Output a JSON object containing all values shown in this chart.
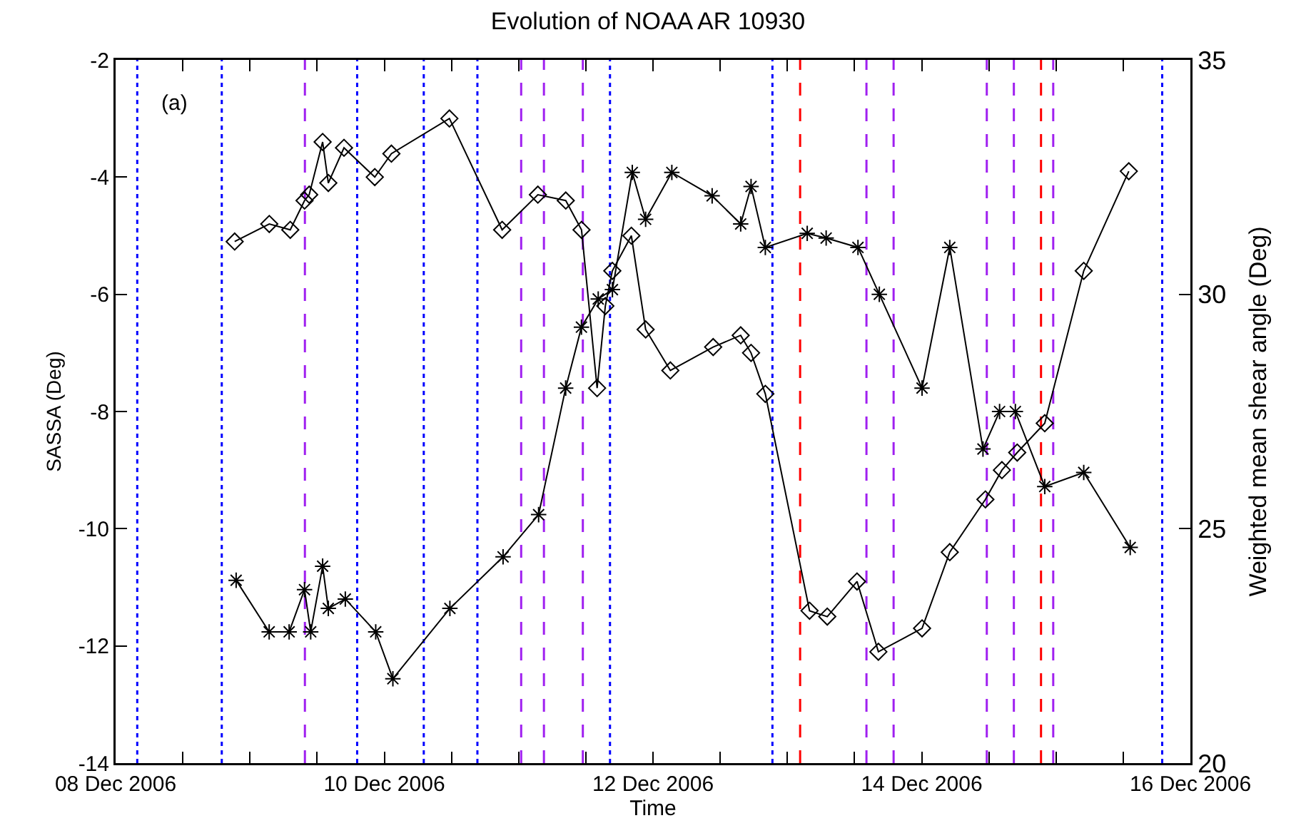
{
  "chart_data": {
    "type": "line",
    "title": "Evolution of NOAA AR 10930",
    "xlabel": "Time",
    "ylabel": "SASSA (Deg)",
    "y2label": "Weighted mean shear angle (Deg)",
    "annotations": [
      "(a)"
    ],
    "xlim": [
      "2006-12-08",
      "2006-12-16"
    ],
    "xticks": [
      {
        "value": "2006-12-08",
        "label": "08 Dec 2006"
      },
      {
        "value": "2006-12-08T12:00",
        "label": null
      },
      {
        "value": "2006-12-09",
        "label": null
      },
      {
        "value": "2006-12-09T12:00",
        "label": null
      },
      {
        "value": "2006-12-10",
        "label": "10 Dec 2006"
      },
      {
        "value": "2006-12-10T12:00",
        "label": null
      },
      {
        "value": "2006-12-11",
        "label": null
      },
      {
        "value": "2006-12-11T12:00",
        "label": null
      },
      {
        "value": "2006-12-12",
        "label": "12 Dec 2006"
      },
      {
        "value": "2006-12-12T12:00",
        "label": null
      },
      {
        "value": "2006-12-13",
        "label": null
      },
      {
        "value": "2006-12-13T12:00",
        "label": null
      },
      {
        "value": "2006-12-14",
        "label": "14 Dec 2006"
      },
      {
        "value": "2006-12-14T12:00",
        "label": null
      },
      {
        "value": "2006-12-15",
        "label": null
      },
      {
        "value": "2006-12-15T12:00",
        "label": null
      },
      {
        "value": "2006-12-16",
        "label": "16 Dec 2006"
      }
    ],
    "ylim": [
      -14,
      -2
    ],
    "yticks": [
      -14,
      -12,
      -10,
      -8,
      -6,
      -4,
      -2
    ],
    "y2lim": [
      20,
      35
    ],
    "y2ticks": [
      20,
      25,
      30,
      35
    ],
    "grid": false,
    "series": [
      {
        "color": "#000000",
        "marker": "diamond",
        "x": [
          "2006-12-08T21:16",
          "2006-12-09T03:27",
          "2006-12-09T07:12",
          "2006-12-09T09:45",
          "2006-12-09T10:35",
          "2006-12-09T12:59",
          "2006-12-09T14:00",
          "2006-12-09T16:48",
          "2006-12-09T22:18",
          "2006-12-10T01:16",
          "2006-12-10T11:38",
          "2006-12-10T21:03",
          "2006-12-11T03:26",
          "2006-12-11T08:25",
          "2006-12-11T11:14",
          "2006-12-11T14:01",
          "2006-12-11T15:29",
          "2006-12-11T16:44",
          "2006-12-11T20:08",
          "2006-12-11T22:41",
          "2006-12-12T03:06",
          "2006-12-12T10:45",
          "2006-12-12T15:40",
          "2006-12-12T17:31",
          "2006-12-12T20:04",
          "2006-12-13T03:58",
          "2006-12-13T07:08",
          "2006-12-13T12:27",
          "2006-12-13T16:16",
          "2006-12-14T00:04",
          "2006-12-14T05:01",
          "2006-12-14T11:23",
          "2006-12-14T14:20",
          "2006-12-14T17:04",
          "2006-12-14T21:59",
          "2006-12-15T04:57",
          "2006-12-15T13:00"
        ],
        "values": [
          -5.1,
          -4.8,
          -4.9,
          -4.4,
          -4.3,
          -3.4,
          -4.1,
          -3.5,
          -4.0,
          -3.6,
          -3.0,
          -4.9,
          -4.3,
          -4.4,
          -4.9,
          -7.6,
          -6.2,
          -5.6,
          -5.0,
          -6.6,
          -7.3,
          -6.9,
          -6.7,
          -7.0,
          -7.7,
          -11.4,
          -11.5,
          -10.9,
          -12.1,
          -11.7,
          -10.4,
          -9.5,
          -9.0,
          -8.7,
          -8.2,
          -5.6,
          -3.9
        ]
      },
      {
        "color": "#000000",
        "marker": "cross",
        "axis": "y2",
        "x": [
          "2006-12-08T21:32",
          "2006-12-09T03:26",
          "2006-12-09T07:00",
          "2006-12-09T09:45",
          "2006-12-09T10:51",
          "2006-12-09T12:59",
          "2006-12-09T14:00",
          "2006-12-09T17:02",
          "2006-12-09T22:28",
          "2006-12-10T01:32",
          "2006-12-10T11:43",
          "2006-12-10T21:13",
          "2006-12-11T03:34",
          "2006-12-11T08:24",
          "2006-12-11T11:13",
          "2006-12-11T14:13",
          "2006-12-11T16:45",
          "2006-12-11T20:18",
          "2006-12-11T22:41",
          "2006-12-12T03:22",
          "2006-12-12T10:34",
          "2006-12-12T15:40",
          "2006-12-12T17:31",
          "2006-12-12T20:04",
          "2006-12-13T03:33",
          "2006-12-13T06:56",
          "2006-12-13T12:37",
          "2006-12-13T16:26",
          "2006-12-14T00:04",
          "2006-12-14T05:01",
          "2006-12-14T10:57",
          "2006-12-14T13:55",
          "2006-12-14T16:44",
          "2006-12-14T21:59",
          "2006-12-15T04:57",
          "2006-12-15T13:15"
        ],
        "values": [
          23.9,
          22.8,
          22.8,
          23.7,
          22.8,
          24.2,
          23.3,
          23.5,
          22.8,
          21.8,
          23.3,
          24.4,
          25.3,
          28.0,
          29.3,
          29.9,
          30.1,
          32.6,
          31.6,
          32.6,
          32.1,
          31.5,
          32.3,
          31.0,
          31.3,
          31.2,
          31.0,
          30.0,
          28.0,
          31.0,
          26.7,
          27.5,
          27.5,
          25.9,
          26.2,
          24.6
        ]
      }
    ],
    "ref_lines": [
      {
        "axis": "x",
        "value": "2006-12-08T03:52",
        "color": "#0000ff",
        "line_style": "dotted"
      },
      {
        "axis": "x",
        "value": "2006-12-08T18:58",
        "color": "#0000ff",
        "line_style": "dotted"
      },
      {
        "axis": "x",
        "value": "2006-12-09T19:09",
        "color": "#0000ff",
        "line_style": "dotted"
      },
      {
        "axis": "x",
        "value": "2006-12-10T07:03",
        "color": "#0000ff",
        "line_style": "dotted"
      },
      {
        "axis": "x",
        "value": "2006-12-10T16:38",
        "color": "#0000ff",
        "line_style": "dotted"
      },
      {
        "axis": "x",
        "value": "2006-12-11T16:19",
        "color": "#0000ff",
        "line_style": "dotted"
      },
      {
        "axis": "x",
        "value": "2006-12-12T21:20",
        "color": "#0000ff",
        "line_style": "dotted"
      },
      {
        "axis": "x",
        "value": "2006-12-15T18:58",
        "color": "#0000ff",
        "line_style": "dotted"
      },
      {
        "axis": "x",
        "value": "2006-12-09T09:49",
        "color": "#a020f0",
        "line_style": "dashed"
      },
      {
        "axis": "x",
        "value": "2006-12-11T00:27",
        "color": "#a020f0",
        "line_style": "dashed"
      },
      {
        "axis": "x",
        "value": "2006-12-11T04:31",
        "color": "#a020f0",
        "line_style": "dashed"
      },
      {
        "axis": "x",
        "value": "2006-12-11T11:28",
        "color": "#a020f0",
        "line_style": "dashed"
      },
      {
        "axis": "x",
        "value": "2006-12-13T14:08",
        "color": "#a020f0",
        "line_style": "dashed"
      },
      {
        "axis": "x",
        "value": "2006-12-13T18:59",
        "color": "#a020f0",
        "line_style": "dashed"
      },
      {
        "axis": "x",
        "value": "2006-12-14T11:38",
        "color": "#a020f0",
        "line_style": "dashed"
      },
      {
        "axis": "x",
        "value": "2006-12-14T16:28",
        "color": "#a020f0",
        "line_style": "dashed"
      },
      {
        "axis": "x",
        "value": "2006-12-14T23:30",
        "color": "#a020f0",
        "line_style": "dashed"
      },
      {
        "axis": "x",
        "value": "2006-12-13T02:17",
        "color": "#ff0000",
        "line_style": "dashed"
      },
      {
        "axis": "x",
        "value": "2006-12-14T21:19",
        "color": "#ff0000",
        "line_style": "dashed"
      }
    ]
  }
}
